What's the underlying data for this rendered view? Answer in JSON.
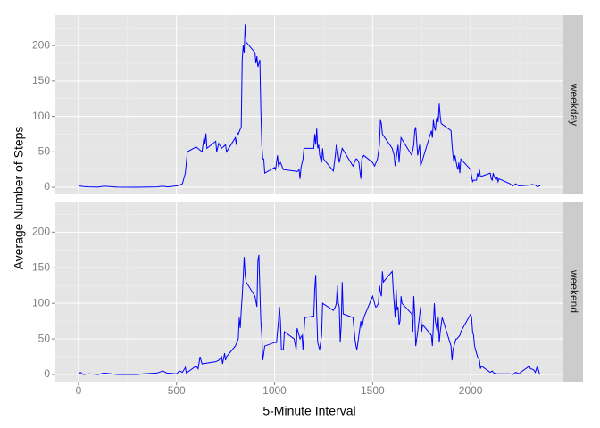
{
  "chart_data": [
    {
      "type": "line",
      "facet": "weekday",
      "ylabel": "Average Number of Steps",
      "color": "blue",
      "x": [
        0,
        25,
        55,
        100,
        130,
        200,
        300,
        400,
        430,
        455,
        500,
        515,
        530,
        545,
        550,
        555,
        600,
        630,
        640,
        645,
        650,
        655,
        700,
        705,
        715,
        730,
        750,
        755,
        800,
        805,
        810,
        815,
        825,
        830,
        835,
        840,
        845,
        850,
        855,
        900,
        905,
        910,
        915,
        925,
        930,
        935,
        940,
        945,
        950,
        1000,
        1005,
        1010,
        1015,
        1020,
        1030,
        1045,
        1100,
        1115,
        1125,
        1130,
        1135,
        1145,
        1150,
        1200,
        1205,
        1210,
        1215,
        1220,
        1225,
        1230,
        1240,
        1245,
        1250,
        1300,
        1310,
        1315,
        1320,
        1330,
        1345,
        1400,
        1415,
        1420,
        1430,
        1440,
        1445,
        1455,
        1500,
        1510,
        1525,
        1535,
        1540,
        1545,
        1550,
        1600,
        1610,
        1615,
        1620,
        1630,
        1635,
        1645,
        1700,
        1710,
        1715,
        1720,
        1730,
        1740,
        1745,
        1800,
        1805,
        1810,
        1815,
        1820,
        1825,
        1830,
        1835,
        1840,
        1845,
        1850,
        1900,
        1905,
        1910,
        1915,
        1920,
        1930,
        1935,
        1940,
        1945,
        1950,
        2000,
        2005,
        2010,
        2015,
        2030,
        2035,
        2040,
        2045,
        2050,
        2100,
        2105,
        2110,
        2115,
        2120,
        2130,
        2135,
        2140,
        2145,
        2200,
        2215,
        2230,
        2245,
        2300,
        2315,
        2330,
        2340,
        2350,
        2355
      ],
      "values": [
        2,
        1,
        0.5,
        0.3,
        1.5,
        0.2,
        0.1,
        0.5,
        1.5,
        0.5,
        2,
        3,
        5,
        20,
        35,
        50,
        57,
        50,
        70,
        62,
        76,
        55,
        65,
        50,
        62,
        55,
        60,
        50,
        70,
        60,
        77,
        75,
        82,
        85,
        180,
        200,
        190,
        230,
        205,
        190,
        175,
        185,
        170,
        180,
        110,
        60,
        40,
        40,
        20,
        28,
        25,
        35,
        45,
        30,
        35,
        25,
        23,
        22,
        25,
        12,
        28,
        40,
        55,
        55,
        75,
        60,
        83,
        55,
        60,
        45,
        35,
        55,
        40,
        23,
        45,
        60,
        55,
        35,
        55,
        30,
        40,
        40,
        35,
        12,
        40,
        45,
        35,
        30,
        40,
        60,
        95,
        90,
        75,
        55,
        45,
        30,
        40,
        60,
        35,
        70,
        45,
        60,
        80,
        85,
        45,
        60,
        30,
        80,
        70,
        95,
        85,
        80,
        95,
        100,
        92,
        118,
        100,
        90,
        80,
        60,
        45,
        35,
        45,
        30,
        25,
        35,
        20,
        40,
        25,
        15,
        8,
        10,
        10,
        20,
        15,
        25,
        15,
        20,
        12,
        10,
        20,
        15,
        10,
        15,
        8,
        12,
        5,
        2,
        5,
        2,
        3,
        4,
        3,
        0.5,
        2,
        2
      ],
      "xlim": [
        -118,
        2473
      ],
      "ylim": [
        -10,
        243
      ],
      "xticks": [
        0,
        500,
        1000,
        1500,
        2000
      ],
      "yticks": [
        0,
        50,
        100,
        150,
        200
      ],
      "minor_xticks": [
        250,
        750,
        1250,
        1750,
        2250
      ],
      "minor_yticks": [
        25,
        75,
        125,
        175,
        225
      ]
    },
    {
      "type": "line",
      "facet": "weekend",
      "xlabel": "5-Minute Interval",
      "color": "blue",
      "x": [
        0,
        10,
        25,
        55,
        100,
        130,
        200,
        300,
        330,
        400,
        430,
        450,
        500,
        515,
        530,
        545,
        550,
        600,
        610,
        620,
        630,
        700,
        715,
        730,
        735,
        745,
        750,
        755,
        800,
        815,
        820,
        825,
        830,
        835,
        840,
        845,
        850,
        855,
        900,
        910,
        915,
        920,
        925,
        930,
        935,
        940,
        945,
        950,
        1000,
        1010,
        1020,
        1025,
        1030,
        1035,
        1045,
        1050,
        1100,
        1110,
        1115,
        1120,
        1130,
        1140,
        1145,
        1150,
        1155,
        1200,
        1205,
        1210,
        1215,
        1220,
        1230,
        1240,
        1245,
        1300,
        1310,
        1315,
        1320,
        1325,
        1330,
        1335,
        1340,
        1345,
        1350,
        1400,
        1410,
        1415,
        1420,
        1430,
        1440,
        1445,
        1455,
        1500,
        1510,
        1515,
        1520,
        1530,
        1535,
        1540,
        1545,
        1550,
        1555,
        1600,
        1605,
        1610,
        1615,
        1620,
        1625,
        1630,
        1635,
        1640,
        1645,
        1650,
        1700,
        1705,
        1710,
        1715,
        1720,
        1730,
        1745,
        1750,
        1755,
        1800,
        1805,
        1810,
        1815,
        1820,
        1830,
        1835,
        1840,
        1845,
        1855,
        1900,
        1905,
        1910,
        1915,
        1925,
        1930,
        1945,
        1950,
        2000,
        2005,
        2010,
        2015,
        2020,
        2030,
        2035,
        2045,
        2050,
        2055,
        2100,
        2110,
        2115,
        2120,
        2130,
        2200,
        2215,
        2230,
        2245,
        2300,
        2305,
        2320,
        2330,
        2340,
        2350,
        2355
      ],
      "values": [
        0,
        3,
        0,
        1,
        0,
        2,
        0,
        0,
        1,
        2,
        5,
        2,
        1,
        5,
        3,
        10,
        2,
        12,
        8,
        25,
        15,
        18,
        20,
        25,
        15,
        30,
        20,
        25,
        40,
        50,
        80,
        65,
        90,
        110,
        135,
        165,
        140,
        130,
        110,
        95,
        160,
        168,
        120,
        75,
        55,
        20,
        30,
        40,
        45,
        45,
        75,
        95,
        75,
        35,
        35,
        60,
        50,
        35,
        65,
        60,
        50,
        55,
        35,
        60,
        80,
        82,
        120,
        140,
        85,
        45,
        35,
        55,
        100,
        90,
        95,
        100,
        125,
        100,
        95,
        45,
        70,
        130,
        85,
        80,
        50,
        40,
        35,
        55,
        75,
        65,
        80,
        110,
        100,
        95,
        95,
        100,
        125,
        115,
        110,
        145,
        130,
        145,
        120,
        100,
        80,
        120,
        90,
        95,
        70,
        75,
        110,
        100,
        85,
        60,
        110,
        85,
        40,
        60,
        95,
        60,
        70,
        55,
        40,
        70,
        100,
        75,
        60,
        80,
        45,
        60,
        80,
        40,
        20,
        35,
        40,
        50,
        50,
        55,
        60,
        85,
        80,
        60,
        55,
        40,
        30,
        25,
        20,
        8,
        12,
        3,
        5,
        3,
        2,
        1,
        1,
        0,
        3,
        1,
        12,
        8,
        7,
        3,
        12,
        2,
        0
      ],
      "xlim": [
        -118,
        2473
      ],
      "ylim": [
        -10,
        243
      ],
      "xticks": [
        0,
        500,
        1000,
        1500,
        2000
      ],
      "yticks": [
        0,
        50,
        100,
        150,
        200
      ],
      "minor_xticks": [
        250,
        750,
        1250,
        1750,
        2250
      ],
      "minor_yticks": [
        25,
        75,
        125,
        175,
        225
      ]
    }
  ]
}
